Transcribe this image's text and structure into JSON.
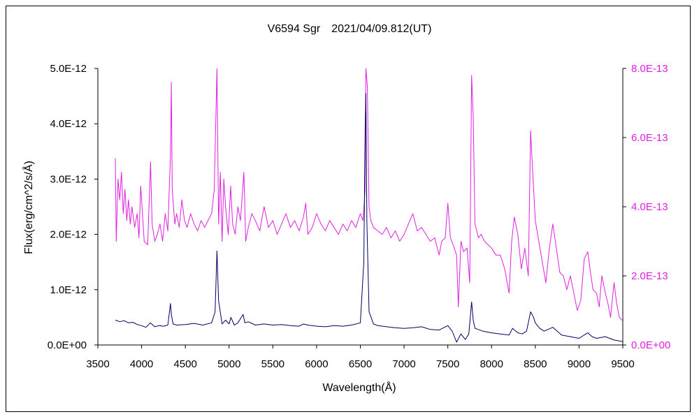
{
  "chart_data": {
    "type": "line",
    "title": "V6594 Sgr　2021/04/09.812(UT)",
    "xlabel": "Wavelength(Å)",
    "ylabel": "Flux(erg/cm^2/s/Å)",
    "xlim": [
      3500,
      9500
    ],
    "ylim": [
      0,
      5e-12
    ],
    "y2lim": [
      0,
      8e-13
    ],
    "xticks": [
      "3500",
      "4000",
      "4500",
      "5000",
      "5500",
      "6000",
      "6500",
      "7000",
      "7500",
      "8000",
      "8500",
      "9000",
      "9500"
    ],
    "yticks": [
      "0.0E+00",
      "1.0E-12",
      "2.0E-12",
      "3.0E-12",
      "4.0E-12",
      "5.0E-12"
    ],
    "y2ticks": [
      "0.0E+00",
      "2.0E-13",
      "4.0E-13",
      "6.0E-13",
      "8.0E-13"
    ],
    "colors": {
      "primary": "#000060",
      "secondary": "#e020e0"
    },
    "series": [
      {
        "axis": "left",
        "color": "#000060",
        "x": [
          3700,
          3750,
          3800,
          3850,
          3900,
          3950,
          4000,
          4050,
          4100,
          4150,
          4200,
          4250,
          4300,
          4330,
          4340,
          4360,
          4400,
          4500,
          4600,
          4700,
          4800,
          4840,
          4861,
          4880,
          4920,
          4960,
          5000,
          5020,
          5060,
          5100,
          5160,
          5180,
          5220,
          5300,
          5400,
          5500,
          5600,
          5700,
          5800,
          5850,
          5900,
          6000,
          6100,
          6200,
          6300,
          6400,
          6500,
          6540,
          6555,
          6563,
          6575,
          6600,
          6650,
          6700,
          6800,
          6900,
          7000,
          7100,
          7200,
          7300,
          7400,
          7500,
          7550,
          7600,
          7650,
          7700,
          7740,
          7772,
          7790,
          7810,
          7850,
          7900,
          8000,
          8100,
          8200,
          8240,
          8300,
          8350,
          8400,
          8446,
          8480,
          8500,
          8550,
          8600,
          8700,
          8800,
          8900,
          9000,
          9100,
          9150,
          9200,
          9300,
          9400,
          9500
        ],
        "values": [
          4.5e-13,
          4.2e-13,
          4.4e-13,
          4e-13,
          4.1e-13,
          3.7e-13,
          3.5e-13,
          3.2e-13,
          4e-13,
          3.3e-13,
          3.5e-13,
          3.4e-13,
          3.6e-13,
          7.5e-13,
          5.5e-13,
          3.8e-13,
          3.6e-13,
          3.7e-13,
          3.9e-13,
          3.6e-13,
          4e-13,
          6e-13,
          1.7e-12,
          8e-13,
          3.8e-13,
          4.5e-13,
          3.8e-13,
          5e-13,
          3.6e-13,
          4e-13,
          5.5e-13,
          4e-13,
          4.2e-13,
          3.6e-13,
          3.8e-13,
          3.6e-13,
          3.7e-13,
          3.5e-13,
          3.4e-13,
          3.8e-13,
          3.6e-13,
          3.4e-13,
          3.3e-13,
          3.5e-13,
          3.4e-13,
          3.6e-13,
          4e-13,
          1.5e-12,
          3.9e-12,
          4.55e-12,
          2.2e-12,
          6e-13,
          3.8e-13,
          3.5e-13,
          3.3e-13,
          3.1e-13,
          3e-13,
          3.1e-13,
          3.3e-13,
          2.8e-13,
          2.7e-13,
          3.5e-13,
          2.5e-13,
          5e-14,
          2e-13,
          1e-13,
          2e-13,
          7.8e-13,
          4.5e-13,
          3e-13,
          2.8e-13,
          2.5e-13,
          2.2e-13,
          2e-13,
          1.8e-13,
          3e-13,
          2.2e-13,
          2e-13,
          2.5e-13,
          6e-13,
          5e-13,
          4e-13,
          3e-13,
          2.5e-13,
          3.2e-13,
          1.8e-13,
          1.5e-13,
          1.2e-13,
          2.2e-13,
          1.5e-13,
          1.2e-13,
          1.5e-13,
          9e-14,
          6e-14
        ]
      },
      {
        "axis": "right",
        "color": "#e020e0",
        "x": [
          3700,
          3710,
          3730,
          3750,
          3770,
          3790,
          3810,
          3830,
          3850,
          3870,
          3890,
          3920,
          3950,
          3970,
          3990,
          4030,
          4070,
          4102,
          4120,
          4150,
          4180,
          4210,
          4240,
          4270,
          4300,
          4330,
          4340,
          4350,
          4380,
          4400,
          4430,
          4460,
          4490,
          4520,
          4560,
          4600,
          4640,
          4680,
          4720,
          4760,
          4800,
          4830,
          4861,
          4880,
          4900,
          4920,
          4940,
          4960,
          4990,
          5018,
          5040,
          5070,
          5100,
          5130,
          5169,
          5190,
          5220,
          5260,
          5300,
          5350,
          5400,
          5450,
          5500,
          5550,
          5600,
          5650,
          5700,
          5750,
          5800,
          5850,
          5876,
          5900,
          5950,
          6000,
          6050,
          6100,
          6150,
          6200,
          6250,
          6300,
          6350,
          6400,
          6450,
          6500,
          6530,
          6555,
          6563,
          6580,
          6600,
          6620,
          6650,
          6700,
          6750,
          6800,
          6850,
          6900,
          6950,
          7000,
          7050,
          7100,
          7150,
          7200,
          7250,
          7300,
          7350,
          7400,
          7430,
          7470,
          7500,
          7530,
          7560,
          7600,
          7620,
          7650,
          7680,
          7720,
          7750,
          7772,
          7790,
          7810,
          7830,
          7850,
          7880,
          7920,
          7960,
          8000,
          8050,
          8100,
          8150,
          8200,
          8230,
          8260,
          8300,
          8340,
          8380,
          8420,
          8446,
          8470,
          8500,
          8540,
          8580,
          8620,
          8660,
          8700,
          8740,
          8780,
          8820,
          8860,
          8900,
          8940,
          8980,
          9020,
          9060,
          9100,
          9130,
          9160,
          9200,
          9230,
          9260,
          9300,
          9330,
          9360,
          9400,
          9430,
          9460,
          9500
        ],
        "values": [
          5.4e-13,
          3e-13,
          4.8e-13,
          4.2e-13,
          5e-13,
          3.8e-13,
          4.5e-13,
          3.6e-13,
          4.2e-13,
          3.5e-13,
          4e-13,
          3.4e-13,
          3.8e-13,
          3.1e-13,
          4.6e-13,
          3e-13,
          2.9e-13,
          5.3e-13,
          3.5e-13,
          3e-13,
          3.2e-13,
          3.5e-13,
          3e-13,
          3.8e-13,
          3.3e-13,
          5.5e-13,
          7.6e-13,
          4.5e-13,
          3.5e-13,
          3.8e-13,
          3.4e-13,
          4.2e-13,
          3.6e-13,
          3.4e-13,
          3.8e-13,
          3.5e-13,
          3.3e-13,
          3.6e-13,
          3.4e-13,
          3.6e-13,
          3.8e-13,
          4.5e-13,
          8e-13,
          3.5e-13,
          5e-13,
          3e-13,
          4.8e-13,
          4e-13,
          3.2e-13,
          4.6e-13,
          3.5e-13,
          3.2e-13,
          4e-13,
          3.6e-13,
          5e-13,
          3e-13,
          3.4e-13,
          3.8e-13,
          3.6e-13,
          3.3e-13,
          4e-13,
          3.4e-13,
          3.6e-13,
          3.2e-13,
          3.5e-13,
          3.8e-13,
          3.4e-13,
          3.6e-13,
          3.3e-13,
          3.7e-13,
          4.1e-13,
          3.2e-13,
          3.4e-13,
          3.8e-13,
          3.5e-13,
          3.3e-13,
          3.6e-13,
          3.4e-13,
          3.2e-13,
          3.5e-13,
          3.3e-13,
          3.6e-13,
          3.4e-13,
          3.8e-13,
          3.6e-13,
          4.5e-13,
          8e-13,
          7.5e-13,
          4e-13,
          3.6e-13,
          3.4e-13,
          3.3e-13,
          3.2e-13,
          3.4e-13,
          3.1e-13,
          3.3e-13,
          3e-13,
          3.2e-13,
          3.5e-13,
          3.8e-13,
          3.3e-13,
          3.4e-13,
          3.2e-13,
          3e-13,
          3.1e-13,
          2.6e-13,
          3e-13,
          3.1e-13,
          4.1e-13,
          3.1e-13,
          2.9e-13,
          2.6e-13,
          1.1e-13,
          3e-13,
          2.7e-13,
          2.8e-13,
          1.8e-13,
          7.8e-13,
          6.6e-13,
          3.5e-13,
          3.3e-13,
          3.1e-13,
          3.2e-13,
          3e-13,
          2.9e-13,
          2.8e-13,
          2.6e-13,
          2.6e-13,
          2.2e-13,
          1.5e-13,
          3e-13,
          3.7e-13,
          3.2e-13,
          2.2e-13,
          2.8e-13,
          2e-13,
          6.2e-13,
          5e-13,
          3.6e-13,
          3e-13,
          2.4e-13,
          1.8e-13,
          2.8e-13,
          3.5e-13,
          2.8e-13,
          2.1e-13,
          2e-13,
          1.6e-13,
          2e-13,
          1.5e-13,
          1e-13,
          1.3e-13,
          2.5e-13,
          2.7e-13,
          2.1e-13,
          1.6e-13,
          1.5e-13,
          1.1e-13,
          2e-13,
          1.5e-13,
          1.2e-13,
          8e-14,
          1.8e-13,
          1.2e-13,
          8e-14,
          7e-14
        ]
      }
    ]
  }
}
